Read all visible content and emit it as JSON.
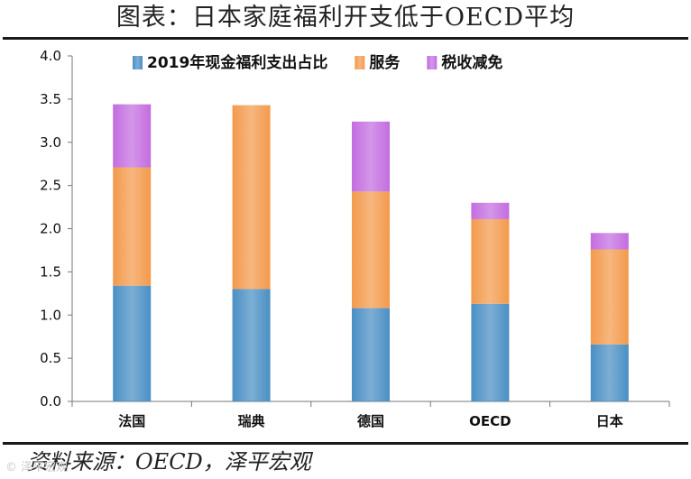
{
  "title": "图表：日本家庭福利开支低于OECD平均",
  "source": "资料来源：OECD，泽平宏观",
  "watermark": "© 泽平宏观",
  "chart_data": {
    "type": "bar",
    "stacked": true,
    "categories": [
      "法国",
      "瑞典",
      "德国",
      "OECD",
      "日本"
    ],
    "series": [
      {
        "name": "2019年现金福利支出占比",
        "color": "#4a8fc4",
        "values": [
          1.34,
          1.3,
          1.08,
          1.13,
          0.66
        ]
      },
      {
        "name": "服务",
        "color": "#f39a4c",
        "values": [
          1.37,
          2.13,
          1.35,
          0.98,
          1.1
        ]
      },
      {
        "name": "税收减免",
        "color": "#c36de0",
        "values": [
          0.73,
          0.0,
          0.81,
          0.19,
          0.19
        ]
      }
    ],
    "yticks": [
      "0.0",
      "0.5",
      "1.0",
      "1.5",
      "2.0",
      "2.5",
      "3.0",
      "3.5",
      "4.0"
    ],
    "ylim": [
      0,
      4
    ],
    "legend_position": "top",
    "grid": false
  }
}
